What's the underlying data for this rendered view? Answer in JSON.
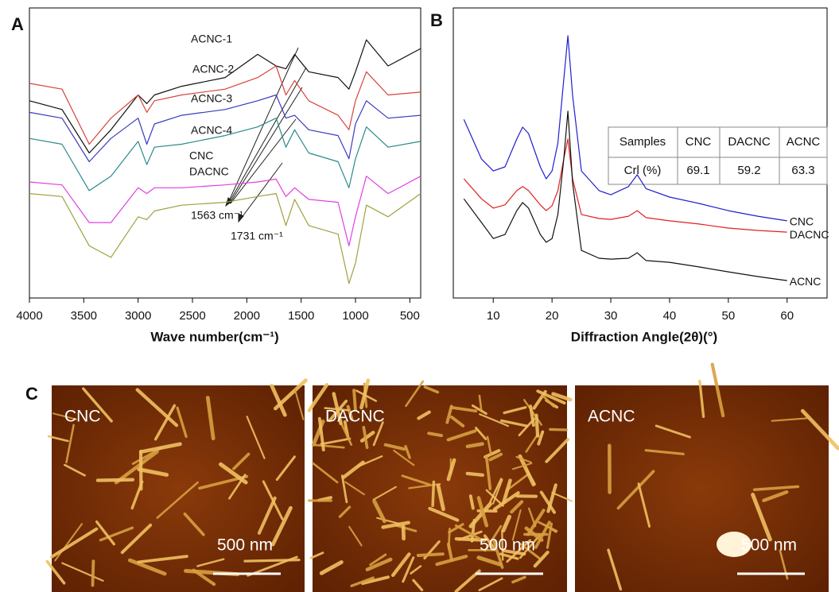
{
  "panel_labels": [
    "A",
    "B",
    "C"
  ],
  "chart_data": [
    {
      "type": "line",
      "xlabel": "Wave number(cm⁻¹)",
      "xlim": [
        4000,
        400
      ],
      "ylim": [
        0,
        100
      ],
      "xticks": [
        4000,
        3500,
        3000,
        2500,
        2000,
        1500,
        1000,
        500
      ],
      "x": [
        4000,
        3700,
        3450,
        3250,
        3000,
        2920,
        2850,
        2600,
        2200,
        1900,
        1730,
        1640,
        1560,
        1430,
        1160,
        1060,
        1000,
        900,
        700,
        400
      ],
      "series": [
        {
          "name": "ACNC-1",
          "color": "#111111",
          "values": [
            68,
            65,
            50,
            58,
            70,
            67,
            70,
            73,
            76,
            84,
            80,
            79,
            84,
            78,
            76,
            72,
            78,
            89,
            80,
            86
          ]
        },
        {
          "name": "ACNC-2",
          "color": "#d9423a",
          "values": [
            74,
            72,
            53,
            62,
            70,
            64,
            68,
            70,
            72,
            76,
            80,
            70,
            75,
            68,
            63,
            58,
            68,
            78,
            70,
            71
          ]
        },
        {
          "name": "ACNC-3",
          "color": "#3b3bbf",
          "values": [
            64,
            62,
            47,
            55,
            62,
            53,
            60,
            63,
            65,
            68,
            70,
            62,
            63,
            58,
            56,
            48,
            60,
            68,
            62,
            63
          ]
        },
        {
          "name": "ACNC-4",
          "color": "#2a8a8a",
          "values": [
            55,
            53,
            37,
            42,
            54,
            46,
            52,
            53,
            56,
            59,
            62,
            52,
            58,
            50,
            47,
            38,
            48,
            59,
            52,
            54
          ]
        },
        {
          "name": "CNC",
          "color": "#e040e0",
          "values": [
            40,
            39,
            26,
            26,
            38,
            36,
            38,
            38,
            39,
            40,
            41,
            35,
            38,
            34,
            33,
            18,
            28,
            42,
            36,
            42
          ]
        },
        {
          "name": "DACNC",
          "color": "#a0a040",
          "values": [
            36,
            35,
            18,
            14,
            28,
            27,
            30,
            32,
            33,
            35,
            36,
            25,
            34,
            25,
            22,
            5,
            12,
            32,
            28,
            36
          ]
        }
      ],
      "annotations": [
        "1563 cm⁻¹",
        "1731 cm⁻¹"
      ]
    },
    {
      "type": "line",
      "xlabel": "Diffraction Angle(2θ)(°)",
      "xlim": [
        3.2,
        66.8
      ],
      "ylim": [
        0,
        100
      ],
      "xticks": [
        10,
        20,
        30,
        40,
        50,
        60
      ],
      "x": [
        5,
        8,
        10,
        12,
        14,
        15,
        16,
        18,
        19,
        20,
        21,
        22,
        22.7,
        23.5,
        25,
        28,
        30,
        33,
        34.5,
        36,
        40,
        45,
        50,
        55,
        60
      ],
      "series": [
        {
          "name": "CNC",
          "color": "#1f1fd0",
          "values": [
            61.6,
            47.9,
            43.8,
            45.2,
            54.8,
            58.9,
            56.7,
            45.2,
            41.1,
            43.8,
            53.4,
            75.3,
            90.4,
            69.9,
            43.8,
            37.0,
            35.6,
            38.4,
            42.5,
            37.7,
            34.8,
            32.6,
            30.1,
            28.2,
            26.6
          ]
        },
        {
          "name": "DACNC",
          "color": "#e02020",
          "values": [
            41.1,
            34.2,
            31.0,
            32.1,
            37.0,
            38.4,
            37.0,
            32.1,
            30.1,
            31.8,
            37.0,
            47.9,
            54.8,
            41.1,
            28.8,
            27.4,
            27.1,
            28.2,
            30.1,
            27.7,
            26.6,
            25.5,
            24.1,
            23.3,
            22.7
          ]
        },
        {
          "name": "ACNC",
          "color": "#111111",
          "values": [
            34.2,
            26.0,
            20.5,
            21.9,
            30.1,
            32.9,
            31.0,
            21.9,
            19.2,
            20.5,
            28.8,
            47.9,
            64.4,
            39.7,
            16.4,
            13.7,
            13.4,
            13.7,
            15.6,
            12.9,
            12.3,
            10.7,
            9.0,
            7.4,
            6.0
          ]
        }
      ],
      "table": {
        "rows": [
          [
            "Samples",
            "CNC",
            "DACNC",
            "ACNC"
          ],
          [
            "Crl (%)",
            "69.1",
            "59.2",
            "63.3"
          ]
        ]
      }
    }
  ],
  "afm_images": [
    {
      "label": "CNC",
      "scale": "500 nm"
    },
    {
      "label": "DACNC",
      "scale": "500 nm"
    },
    {
      "label": "ACNC",
      "scale": "500 nm"
    }
  ]
}
